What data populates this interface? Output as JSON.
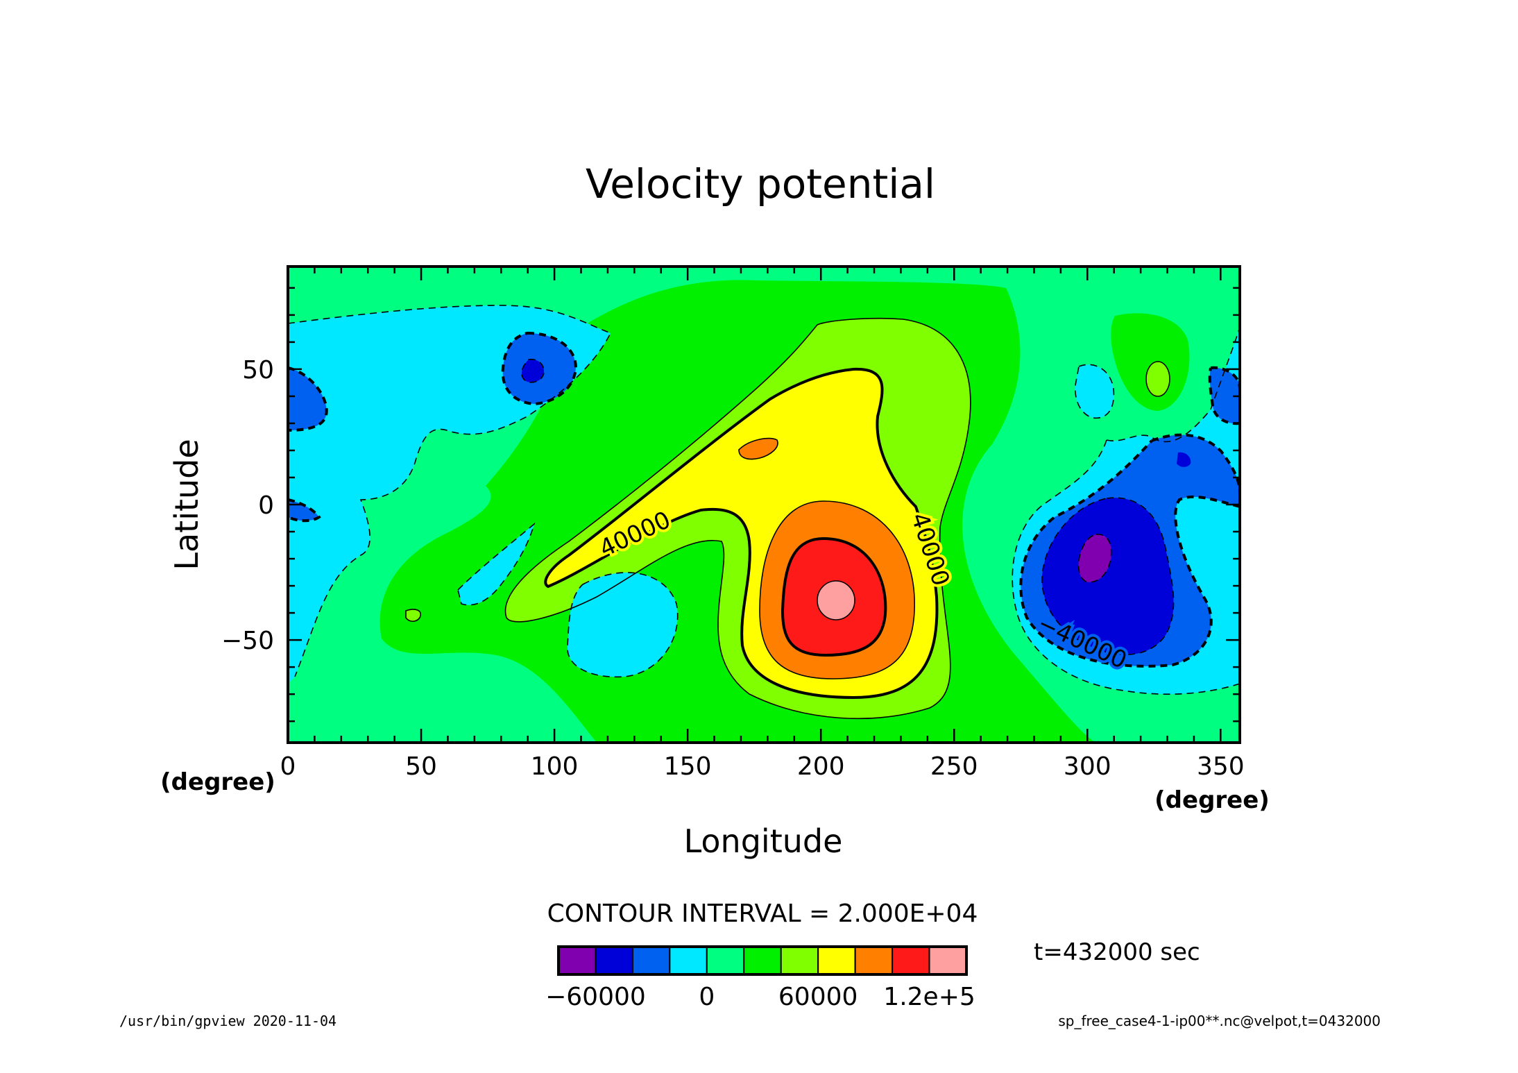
{
  "chart_data": {
    "type": "heatmap",
    "title": "Velocity potential",
    "xlabel": "Longitude",
    "ylabel": "Latitude",
    "x_unit": "(degree)",
    "y_unit": "(degree)",
    "xlim": [
      0,
      357.2
    ],
    "ylim": [
      -87.9,
      87.9
    ],
    "x_ticks": [
      0,
      50,
      100,
      150,
      200,
      250,
      300,
      350
    ],
    "y_ticks": [
      50,
      0,
      -50
    ],
    "x_tick_labels": [
      "0",
      "50",
      "100",
      "150",
      "200",
      "250",
      "300",
      "350"
    ],
    "y_tick_labels": [
      "50",
      "0",
      "−50"
    ],
    "grid": false,
    "contour_interval_label": "CONTOUR INTERVAL = 2.000E+04",
    "contour_labels": [
      "40000",
      "40000",
      "−40000"
    ],
    "colorbar": {
      "levels": [
        -80000,
        -60000,
        -40000,
        -20000,
        0,
        20000,
        40000,
        60000,
        80000,
        100000,
        120000,
        140000
      ],
      "colors": [
        "#8000b0",
        "#0000d8",
        "#0060f0",
        "#00e8ff",
        "#00ff80",
        "#00f000",
        "#80ff00",
        "#ffff00",
        "#ff8000",
        "#ff1a1a",
        "#ffa0a0"
      ],
      "tick_labels": [
        "−60000",
        "0",
        "60000",
        "1.2e+5"
      ],
      "tick_values": [
        -60000,
        0,
        60000,
        120000
      ]
    },
    "features": [
      {
        "kind": "max",
        "lon": 207,
        "lat": -36,
        "value_range": [
          120000,
          140000
        ]
      },
      {
        "kind": "min",
        "lon": 303,
        "lat": -20,
        "value_range": [
          -80000,
          -60000
        ]
      },
      {
        "kind": "min",
        "lon": 92,
        "lat": 49,
        "value_range": [
          -60000,
          -40000
        ]
      },
      {
        "kind": "local",
        "lon": 178,
        "lat": 20,
        "value_range": [
          80000,
          100000
        ]
      }
    ]
  },
  "annotations": {
    "time": "t=432000 sec",
    "program": "/usr/bin/gpview  2020-11-04",
    "source": "sp_free_case4-1-ip00**.nc@velpot,t=0432000"
  }
}
